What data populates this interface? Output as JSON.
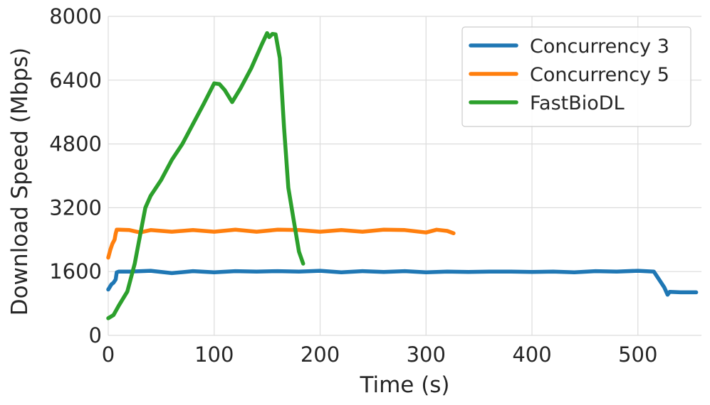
{
  "chart_data": {
    "type": "line",
    "title": "",
    "xlabel": "Time (s)",
    "ylabel": "Download Speed (Mbps)",
    "xlim": [
      0,
      560
    ],
    "ylim": [
      0,
      8000
    ],
    "xticks": [
      0,
      100,
      200,
      300,
      400,
      500
    ],
    "yticks": [
      0,
      1600,
      3200,
      4800,
      6400,
      8000
    ],
    "grid": true,
    "legend_position": "top-right",
    "series": [
      {
        "name": "Concurrency 3",
        "color": "#1f77b4",
        "x": [
          0,
          3,
          5,
          7,
          8,
          10,
          20,
          40,
          60,
          80,
          100,
          120,
          140,
          160,
          180,
          200,
          220,
          240,
          260,
          280,
          300,
          320,
          340,
          360,
          380,
          400,
          420,
          440,
          460,
          480,
          500,
          515,
          520,
          525,
          528,
          530,
          540,
          550,
          555
        ],
        "y": [
          1150,
          1280,
          1320,
          1400,
          1580,
          1600,
          1600,
          1620,
          1560,
          1610,
          1580,
          1610,
          1600,
          1610,
          1600,
          1620,
          1580,
          1610,
          1590,
          1610,
          1580,
          1600,
          1590,
          1600,
          1600,
          1590,
          1600,
          1580,
          1610,
          1600,
          1620,
          1600,
          1400,
          1200,
          1020,
          1090,
          1080,
          1080,
          1080
        ]
      },
      {
        "name": "Concurrency 5",
        "color": "#ff7f0e",
        "x": [
          0,
          2,
          4,
          6,
          7,
          8,
          10,
          20,
          30,
          40,
          60,
          80,
          100,
          120,
          140,
          160,
          180,
          200,
          220,
          240,
          260,
          280,
          300,
          310,
          320,
          326
        ],
        "y": [
          1950,
          2150,
          2300,
          2400,
          2550,
          2650,
          2650,
          2640,
          2580,
          2640,
          2600,
          2640,
          2600,
          2650,
          2600,
          2650,
          2640,
          2600,
          2640,
          2600,
          2650,
          2640,
          2580,
          2650,
          2620,
          2560
        ]
      },
      {
        "name": "FastBioDL",
        "color": "#2ca02c",
        "x": [
          0,
          5,
          10,
          18,
          25,
          30,
          35,
          40,
          50,
          60,
          70,
          80,
          90,
          100,
          105,
          110,
          117,
          125,
          135,
          145,
          150,
          152,
          155,
          158,
          162,
          166,
          170,
          175,
          180,
          184
        ],
        "y": [
          430,
          510,
          750,
          1100,
          1800,
          2500,
          3200,
          3500,
          3900,
          4400,
          4800,
          5300,
          5800,
          6320,
          6300,
          6150,
          5850,
          6200,
          6700,
          7300,
          7580,
          7480,
          7560,
          7550,
          6950,
          5200,
          3700,
          2900,
          2100,
          1800
        ]
      }
    ]
  }
}
